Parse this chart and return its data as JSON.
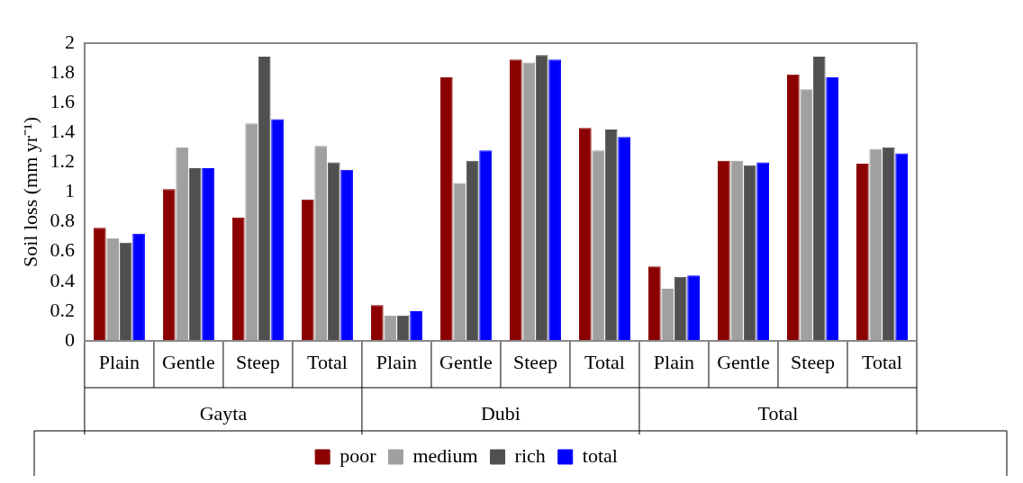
{
  "chart_data": {
    "type": "bar",
    "ylabel": "Soil loss (mm yr⁻¹)",
    "categories": [
      "Plain",
      "Gentle",
      "Steep",
      "Total",
      "Plain",
      "Gentle",
      "Steep",
      "Total",
      "Plain",
      "Gentle",
      "Steep",
      "Total"
    ],
    "annotations": [
      "Gayta",
      "Dubi",
      "Total"
    ],
    "series": [
      {
        "name": "poor",
        "color": "#8b0000",
        "values": [
          0.76,
          1.02,
          0.83,
          0.95,
          0.24,
          1.77,
          1.89,
          1.43,
          0.5,
          1.21,
          1.79,
          1.19
        ]
      },
      {
        "name": "medium",
        "color": "#a0a0a0",
        "values": [
          0.69,
          1.3,
          1.46,
          1.31,
          0.17,
          1.06,
          1.87,
          1.28,
          0.35,
          1.21,
          1.69,
          1.29
        ]
      },
      {
        "name": "rich",
        "color": "#505050",
        "values": [
          0.66,
          1.16,
          1.91,
          1.2,
          0.17,
          1.21,
          1.92,
          1.42,
          0.43,
          1.18,
          1.91,
          1.3
        ]
      },
      {
        "name": "total",
        "color": "#0000ff",
        "values": [
          0.72,
          1.16,
          1.49,
          1.15,
          0.2,
          1.28,
          1.89,
          1.37,
          0.44,
          1.2,
          1.77,
          1.26
        ]
      }
    ],
    "ylim": [
      0,
      2
    ],
    "yticks": [
      0,
      0.2,
      0.4,
      0.6,
      0.8,
      1,
      1.2,
      1.4,
      1.6,
      1.8,
      2
    ],
    "grid": false,
    "legend": "bottom"
  }
}
